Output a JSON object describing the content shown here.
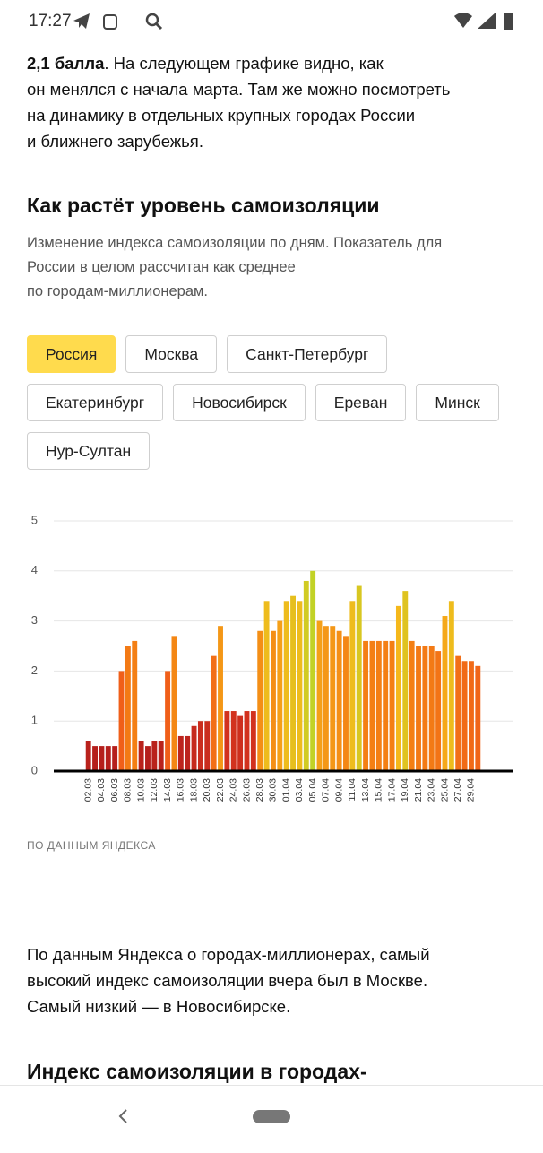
{
  "status_bar": {
    "time": "17:27"
  },
  "intro": {
    "bold": "2,1 балла",
    "lines": [
      ". На следующем графике видно, как",
      "он менялся с начала марта. Там же можно посмотреть",
      "на динамику в отдельных крупных городах России",
      "и ближнего зарубежья."
    ]
  },
  "section_title": "Как растёт уровень самоизоляции",
  "section_subtitle": [
    "Изменение индекса самоизоляции по дням. Показатель для",
    "России в целом рассчитан как среднее",
    "по городам-миллионерам."
  ],
  "filters": {
    "options": [
      "Россия",
      "Москва",
      "Санкт-Петербург",
      "Екатеринбург",
      "Новосибирск",
      "Ереван",
      "Минск",
      "Нур-Султан"
    ],
    "selected": 0
  },
  "chart_data": {
    "type": "bar",
    "categories": [
      "02.03",
      null,
      "04.03",
      null,
      "06.03",
      null,
      "08.03",
      null,
      "10.03",
      null,
      "12.03",
      null,
      "14.03",
      null,
      "16.03",
      null,
      "18.03",
      null,
      "20.03",
      null,
      "22.03",
      null,
      "24.03",
      null,
      "26.03",
      null,
      "28.03",
      null,
      "30.03",
      null,
      "01.04",
      null,
      "03.04",
      null,
      "05.04",
      null,
      "07.04",
      null,
      "09.04",
      null,
      "11.04",
      null,
      "13.04",
      null,
      "15.04",
      null,
      "17.04",
      null,
      "19.04",
      null,
      "21.04",
      null,
      "23.04",
      null,
      "25.04",
      null,
      "27.04",
      null,
      "29.04",
      null
    ],
    "values": [
      0.6,
      0.5,
      0.5,
      0.5,
      0.5,
      2.0,
      2.5,
      2.6,
      0.6,
      0.5,
      0.6,
      0.6,
      2.0,
      2.7,
      0.7,
      0.7,
      0.9,
      1.0,
      1.0,
      2.3,
      2.9,
      1.2,
      1.2,
      1.1,
      1.2,
      1.2,
      2.8,
      3.4,
      2.8,
      3.0,
      3.4,
      3.5,
      3.4,
      3.8,
      4.0,
      3.0,
      2.9,
      2.9,
      2.8,
      2.7,
      3.4,
      3.7,
      2.6,
      2.6,
      2.6,
      2.6,
      2.6,
      3.3,
      3.6,
      2.6,
      2.5,
      2.5,
      2.5,
      2.4,
      3.1,
      3.4,
      2.3,
      2.2,
      2.2,
      2.1
    ],
    "color_scale": [
      "#b51f1c",
      "#d2321e",
      "#ef5a1a",
      "#f47f14",
      "#f5b81b",
      "#c2d226"
    ],
    "ylim": [
      0,
      5
    ],
    "yticks": [
      0,
      1,
      2,
      3,
      4,
      5
    ],
    "grid": true
  },
  "source": "ПО ДАННЫМ ЯНДЕКСА",
  "paragraph": [
    "По данным Яндекса о городах-миллионерах, самый",
    "высокий индекс самоизоляции вчера был в Москве.",
    "Самый низкий — в Новосибирске."
  ],
  "next_title": "Индекс самоизоляции в городах-"
}
